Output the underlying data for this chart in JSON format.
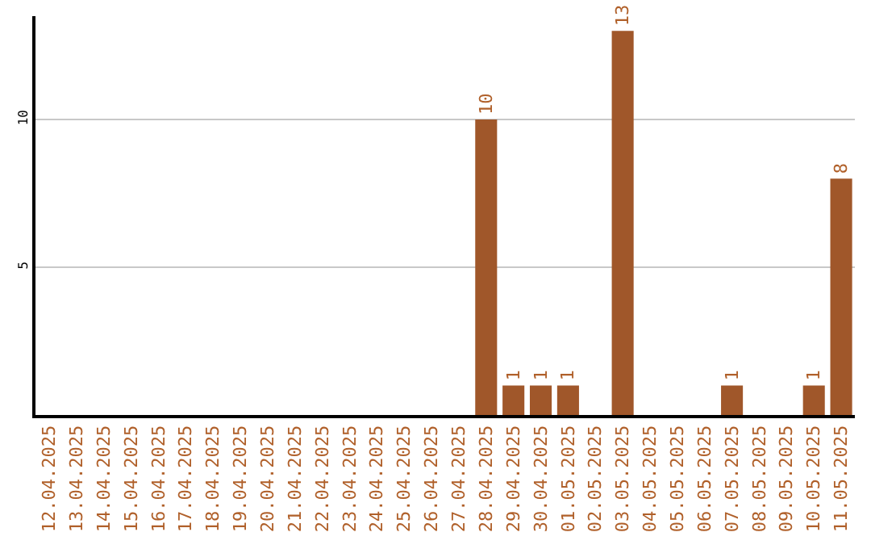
{
  "chart_data": {
    "type": "bar",
    "categories": [
      "12.04.2025",
      "13.04.2025",
      "14.04.2025",
      "15.04.2025",
      "16.04.2025",
      "17.04.2025",
      "18.04.2025",
      "19.04.2025",
      "20.04.2025",
      "21.04.2025",
      "22.04.2025",
      "23.04.2025",
      "24.04.2025",
      "25.04.2025",
      "26.04.2025",
      "27.04.2025",
      "28.04.2025",
      "29.04.2025",
      "30.04.2025",
      "01.05.2025",
      "02.05.2025",
      "03.05.2025",
      "04.05.2025",
      "05.05.2025",
      "06.05.2025",
      "07.05.2025",
      "08.05.2025",
      "09.05.2025",
      "10.05.2025",
      "11.05.2025"
    ],
    "values": [
      0,
      0,
      0,
      0,
      0,
      0,
      0,
      0,
      0,
      0,
      0,
      0,
      0,
      0,
      0,
      0,
      10,
      1,
      1,
      1,
      0,
      13,
      0,
      0,
      0,
      1,
      0,
      0,
      1,
      8
    ],
    "value_labels": [
      null,
      null,
      null,
      null,
      null,
      null,
      null,
      null,
      null,
      null,
      null,
      null,
      null,
      null,
      null,
      null,
      "10",
      "1",
      "1",
      "1",
      null,
      "13",
      null,
      null,
      null,
      "1",
      null,
      null,
      "1",
      "8"
    ],
    "color": "#a0572a",
    "ylim": [
      0,
      13.5
    ],
    "yticks": [
      5,
      10
    ],
    "grid": "y",
    "legend": false
  }
}
